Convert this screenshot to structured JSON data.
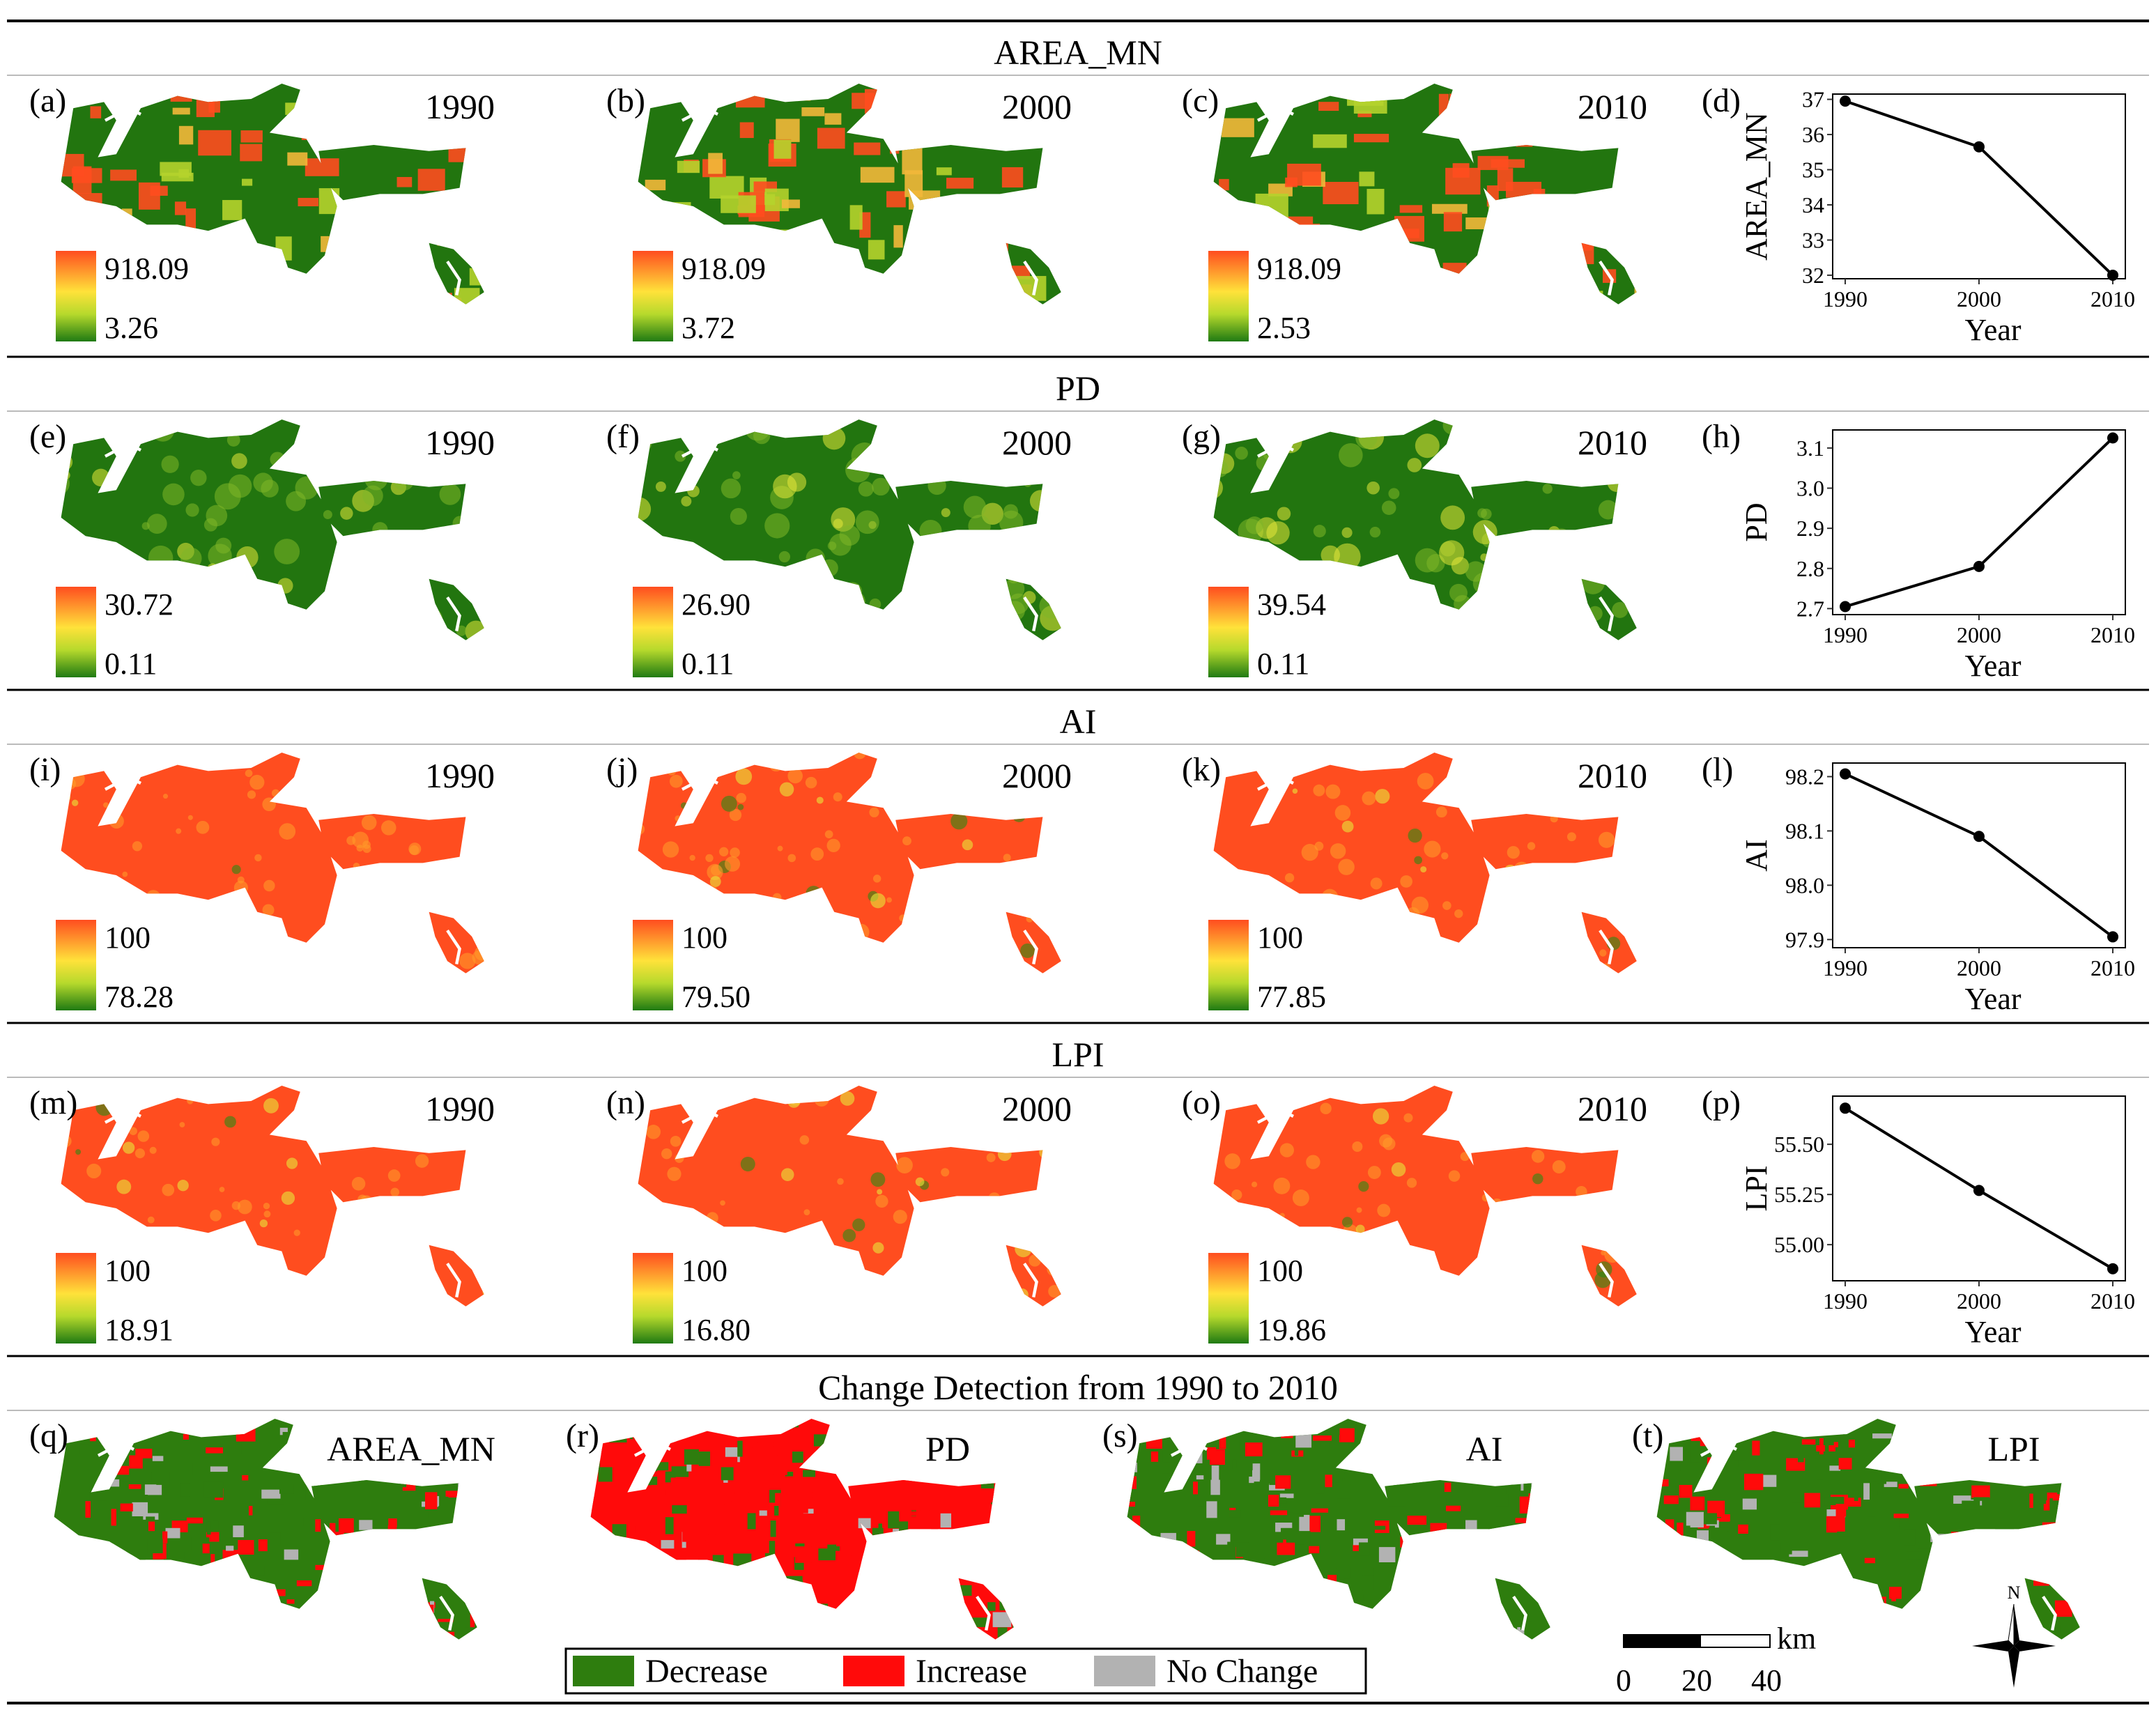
{
  "sections": [
    {
      "title": "AREA_MN",
      "panels": [
        {
          "letter": "(a)",
          "year": "1990",
          "legend_max": "918.09",
          "legend_min": "3.26",
          "scheme": "mixed"
        },
        {
          "letter": "(b)",
          "year": "2000",
          "legend_max": "918.09",
          "legend_min": "3.72",
          "scheme": "mixed"
        },
        {
          "letter": "(c)",
          "year": "2010",
          "legend_max": "918.09",
          "legend_min": "2.53",
          "scheme": "mixed"
        }
      ],
      "chart_letter": "(d)"
    },
    {
      "title": "PD",
      "panels": [
        {
          "letter": "(e)",
          "year": "1990",
          "legend_max": "30.72",
          "legend_min": "0.11",
          "scheme": "green"
        },
        {
          "letter": "(f)",
          "year": "2000",
          "legend_max": "26.90",
          "legend_min": "0.11",
          "scheme": "green"
        },
        {
          "letter": "(g)",
          "year": "2010",
          "legend_max": "39.54",
          "legend_min": "0.11",
          "scheme": "green"
        }
      ],
      "chart_letter": "(h)"
    },
    {
      "title": "AI",
      "panels": [
        {
          "letter": "(i)",
          "year": "1990",
          "legend_max": "100",
          "legend_min": "78.28",
          "scheme": "red"
        },
        {
          "letter": "(j)",
          "year": "2000",
          "legend_max": "100",
          "legend_min": "79.50",
          "scheme": "red"
        },
        {
          "letter": "(k)",
          "year": "2010",
          "legend_max": "100",
          "legend_min": "77.85",
          "scheme": "red"
        }
      ],
      "chart_letter": "(l)"
    },
    {
      "title": "LPI",
      "panels": [
        {
          "letter": "(m)",
          "year": "1990",
          "legend_max": "100",
          "legend_min": "18.91",
          "scheme": "red"
        },
        {
          "letter": "(n)",
          "year": "2000",
          "legend_max": "100",
          "legend_min": "16.80",
          "scheme": "red"
        },
        {
          "letter": "(o)",
          "year": "2010",
          "legend_max": "100",
          "legend_min": "19.86",
          "scheme": "red"
        }
      ],
      "chart_letter": "(p)"
    }
  ],
  "change_detection": {
    "title": "Change Detection from 1990 to 2010",
    "panels": [
      {
        "letter": "(q)",
        "label": "AREA_MN",
        "scheme": "cd_green"
      },
      {
        "letter": "(r)",
        "label": "PD",
        "scheme": "cd_red"
      },
      {
        "letter": "(s)",
        "label": "AI",
        "scheme": "cd_green"
      },
      {
        "letter": "(t)",
        "label": "LPI",
        "scheme": "cd_green"
      }
    ],
    "legend": [
      {
        "label": "Decrease",
        "color": "#2e7d0e"
      },
      {
        "label": "Increase",
        "color": "#ff0a0a"
      },
      {
        "label": "No Change",
        "color": "#b2b2b2"
      }
    ]
  },
  "scale_bar": {
    "unit": "km",
    "ticks": [
      "0",
      "20",
      "40"
    ]
  },
  "north_arrow": {
    "label": "N"
  },
  "colors": {
    "red": "#ff4d1f",
    "orange": "#ff9d2a",
    "yellow": "#f2f23a",
    "green": "#2a7a12",
    "dark_green": "#1f6b0c"
  },
  "chart_data": [
    {
      "type": "line",
      "title": "",
      "xlabel": "Year",
      "ylabel": "AREA_MN",
      "x": [
        1990,
        2000,
        2010
      ],
      "y": [
        36.95,
        35.65,
        32.0
      ],
      "xticks": [
        "1990",
        "2000",
        "2010"
      ],
      "yticks": [
        "32",
        "33",
        "34",
        "35",
        "36",
        "37"
      ],
      "ylim": [
        31.9,
        37.15
      ],
      "ytick_values": [
        32,
        33,
        34,
        35,
        36,
        37
      ]
    },
    {
      "type": "line",
      "title": "",
      "xlabel": "Year",
      "ylabel": "PD",
      "x": [
        1990,
        2000,
        2010
      ],
      "y": [
        2.705,
        2.805,
        3.125
      ],
      "xticks": [
        "1990",
        "2000",
        "2010"
      ],
      "yticks": [
        "2.7",
        "2.8",
        "2.9",
        "3.0",
        "3.1"
      ],
      "ylim": [
        2.685,
        3.145
      ],
      "ytick_values": [
        2.7,
        2.8,
        2.9,
        3.0,
        3.1
      ]
    },
    {
      "type": "line",
      "title": "",
      "xlabel": "Year",
      "ylabel": "AI",
      "x": [
        1990,
        2000,
        2010
      ],
      "y": [
        98.205,
        98.09,
        97.905
      ],
      "xticks": [
        "1990",
        "2000",
        "2010"
      ],
      "yticks": [
        "97.9",
        "98.0",
        "98.1",
        "98.2"
      ],
      "ylim": [
        97.885,
        98.225
      ],
      "ytick_values": [
        97.9,
        98.0,
        98.1,
        98.2
      ]
    },
    {
      "type": "line",
      "title": "",
      "xlabel": "Year",
      "ylabel": "LPI",
      "x": [
        1990,
        2000,
        2010
      ],
      "y": [
        55.68,
        55.27,
        54.88
      ],
      "xticks": [
        "1990",
        "2000",
        "2010"
      ],
      "yticks": [
        "55.00",
        "55.25",
        "55.50"
      ],
      "ylim": [
        54.82,
        55.74
      ],
      "ytick_values": [
        55.0,
        55.25,
        55.5
      ]
    }
  ]
}
